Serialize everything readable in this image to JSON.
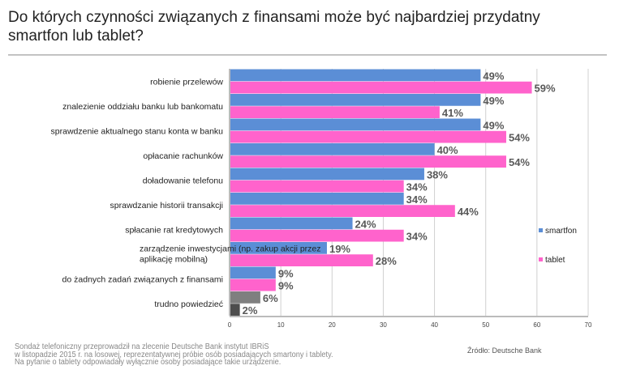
{
  "title": "Do których czynności związanych z finansami może być najbardziej przydatny smartfon lub tablet?",
  "note": [
    "Sondaż telefoniczny przeprowadził na zlecenie Deutsche Bank instytut IBRiS",
    "w  listopadzie 2015 r. na losowej, reprezentatywnej próbie osób posiadających smartony i tablety.",
    "Na pytanie o tablety odpowiadały wyłącznie osoby posiadające takie urządzenie."
  ],
  "source": "Źródło: Deutsche Bank",
  "chart_data": {
    "type": "bar",
    "orientation": "horizontal",
    "categories": [
      "robienie przelewów",
      "znalezienie oddziału banku lub bankomatu",
      "sprawdzenie aktualnego stanu konta w banku",
      "opłacanie rachunków",
      "doładowanie telefonu",
      "sprawdzanie historii transakcji",
      "spłacanie rat kredytowych",
      "zarządzenie inwestycjami (np. zakup akcji przez aplikację mobilną)",
      "do żadnych zadań związanych z finansami",
      "trudno powiedzieć"
    ],
    "series": [
      {
        "name": "smartfon",
        "color": "#5B8ED6",
        "values": [
          49,
          49,
          49,
          40,
          38,
          34,
          24,
          19,
          9,
          6
        ]
      },
      {
        "name": "tablet",
        "color": "#FF63CC",
        "values": [
          59,
          41,
          54,
          54,
          34,
          44,
          34,
          28,
          9,
          2
        ]
      }
    ],
    "special_colors": {
      "trudno powiedzieć": [
        "#7F7F7F",
        "#4D4D4D"
      ]
    },
    "value_suffix": "%",
    "xlim": [
      0,
      70
    ],
    "xticks": [
      0,
      10,
      20,
      30,
      40,
      50,
      60,
      70
    ],
    "grid": true,
    "legend": "right"
  }
}
